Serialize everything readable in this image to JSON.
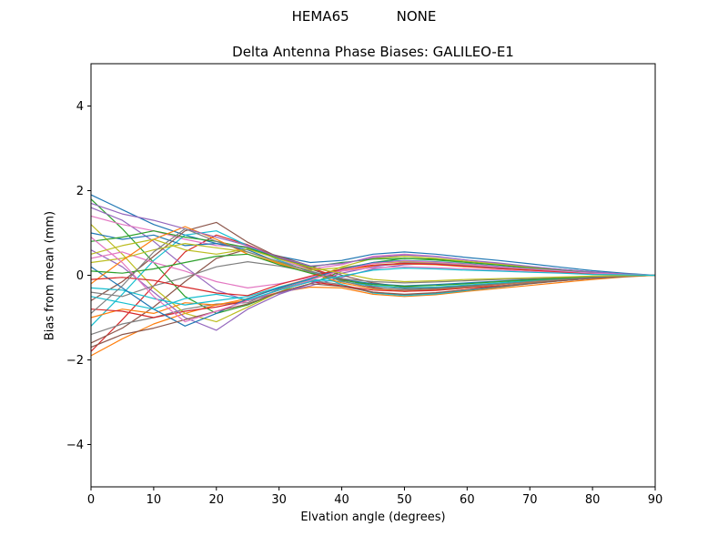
{
  "header": {
    "station": "HEMA65",
    "mode": "NONE"
  },
  "chart_data": {
    "type": "line",
    "suptitle": "HEMA65          NONE",
    "title": "Delta Antenna Phase Biases: GALILEO-E1",
    "xlabel": "Elvation angle (degrees)",
    "ylabel": "Bias from mean (mm)",
    "xlim": [
      0,
      90
    ],
    "ylim": [
      -5,
      5
    ],
    "xticks": [
      0,
      10,
      20,
      30,
      40,
      50,
      60,
      70,
      80,
      90
    ],
    "yticks": [
      -4,
      -2,
      0,
      2,
      4
    ],
    "grid": false,
    "legend": false,
    "x": [
      0,
      5,
      10,
      15,
      20,
      25,
      30,
      35,
      40,
      45,
      50,
      55,
      60,
      65,
      70,
      75,
      80,
      85,
      90
    ],
    "colors": [
      "#1f77b4",
      "#ff7f0e",
      "#2ca02c",
      "#d62728",
      "#9467bd",
      "#8c564b",
      "#e377c2",
      "#7f7f7f",
      "#bcbd22",
      "#17becf"
    ],
    "series": [
      [
        1.9,
        1.55,
        1.2,
        0.95,
        0.75,
        0.65,
        0.45,
        0.3,
        0.35,
        0.5,
        0.55,
        0.5,
        0.42,
        0.35,
        0.27,
        0.19,
        0.11,
        0.05,
        0.0
      ],
      [
        -1.9,
        -1.5,
        -1.15,
        -0.9,
        -0.7,
        -0.6,
        -0.4,
        -0.28,
        -0.3,
        -0.45,
        -0.5,
        -0.46,
        -0.38,
        -0.31,
        -0.24,
        -0.17,
        -0.1,
        -0.04,
        0.0
      ],
      [
        1.8,
        1.1,
        0.3,
        -0.5,
        -0.9,
        -0.7,
        -0.4,
        -0.2,
        0.1,
        0.3,
        0.4,
        0.38,
        0.32,
        0.26,
        0.2,
        0.14,
        0.08,
        0.03,
        0.0
      ],
      [
        -1.8,
        -1.05,
        -0.25,
        0.55,
        0.95,
        0.72,
        0.42,
        0.18,
        -0.08,
        -0.28,
        -0.38,
        -0.36,
        -0.3,
        -0.25,
        -0.19,
        -0.13,
        -0.07,
        -0.03,
        0.0
      ],
      [
        1.6,
        1.3,
        0.8,
        0.2,
        -0.35,
        -0.6,
        -0.42,
        -0.25,
        -0.05,
        0.15,
        0.25,
        0.28,
        0.25,
        0.2,
        0.15,
        0.1,
        0.06,
        0.02,
        0.0
      ],
      [
        -1.6,
        -1.25,
        -0.75,
        -0.15,
        0.4,
        0.62,
        0.45,
        0.22,
        0.0,
        -0.18,
        -0.28,
        -0.3,
        -0.26,
        -0.21,
        -0.16,
        -0.11,
        -0.06,
        -0.02,
        0.0
      ],
      [
        1.4,
        1.2,
        1.05,
        0.85,
        0.7,
        0.68,
        0.35,
        0.15,
        0.25,
        0.45,
        0.5,
        0.45,
        0.36,
        0.28,
        0.2,
        0.13,
        0.07,
        0.03,
        0.0
      ],
      [
        -1.4,
        -1.15,
        -1.0,
        -0.8,
        -0.68,
        -0.65,
        -0.32,
        -0.12,
        -0.22,
        -0.4,
        -0.46,
        -0.42,
        -0.34,
        -0.26,
        -0.18,
        -0.12,
        -0.06,
        -0.02,
        0.0
      ],
      [
        1.2,
        0.5,
        -0.3,
        -0.9,
        -1.1,
        -0.75,
        -0.4,
        -0.1,
        0.2,
        0.4,
        0.45,
        0.4,
        0.33,
        0.26,
        0.19,
        0.12,
        0.06,
        0.02,
        0.0
      ],
      [
        -1.2,
        -0.45,
        0.35,
        0.95,
        1.05,
        0.7,
        0.35,
        0.08,
        -0.22,
        -0.42,
        -0.48,
        -0.44,
        -0.36,
        -0.28,
        -0.2,
        -0.13,
        -0.07,
        -0.03,
        0.0
      ],
      [
        1.0,
        0.85,
        0.95,
        0.7,
        0.75,
        0.6,
        0.3,
        0.1,
        -0.1,
        -0.2,
        -0.25,
        -0.22,
        -0.18,
        -0.14,
        -0.1,
        -0.07,
        -0.04,
        -0.01,
        0.0
      ],
      [
        -1.0,
        -0.8,
        -0.9,
        -0.65,
        -0.7,
        -0.55,
        -0.28,
        -0.08,
        0.12,
        0.22,
        0.27,
        0.25,
        0.2,
        0.16,
        0.12,
        0.08,
        0.04,
        0.01,
        0.0
      ],
      [
        0.8,
        0.9,
        1.05,
        0.9,
        0.8,
        0.65,
        0.4,
        0.2,
        0.3,
        0.38,
        0.4,
        0.36,
        0.3,
        0.24,
        0.17,
        0.11,
        0.06,
        0.02,
        0.0
      ],
      [
        -0.8,
        -0.85,
        -1.0,
        -0.85,
        -0.75,
        -0.6,
        -0.35,
        -0.15,
        -0.25,
        -0.35,
        -0.38,
        -0.34,
        -0.28,
        -0.22,
        -0.16,
        -0.1,
        -0.05,
        -0.02,
        0.0
      ],
      [
        0.6,
        0.2,
        -0.4,
        -1.0,
        -1.3,
        -0.8,
        -0.45,
        -0.2,
        0.05,
        0.2,
        0.3,
        0.28,
        0.23,
        0.18,
        0.13,
        0.09,
        0.05,
        0.02,
        0.0
      ],
      [
        -0.6,
        -0.15,
        0.45,
        1.05,
        1.25,
        0.78,
        0.42,
        0.15,
        -0.1,
        -0.25,
        -0.32,
        -0.3,
        -0.25,
        -0.2,
        -0.14,
        -0.09,
        -0.05,
        -0.02,
        0.0
      ],
      [
        0.4,
        0.55,
        0.3,
        0.1,
        -0.15,
        -0.3,
        -0.2,
        -0.05,
        0.1,
        0.18,
        0.2,
        0.18,
        0.15,
        0.12,
        0.09,
        0.06,
        0.03,
        0.01,
        0.0
      ],
      [
        -0.4,
        -0.5,
        -0.25,
        -0.05,
        0.2,
        0.32,
        0.22,
        0.08,
        -0.08,
        -0.15,
        -0.18,
        -0.16,
        -0.13,
        -0.1,
        -0.08,
        -0.05,
        -0.03,
        -0.01,
        0.0
      ],
      [
        0.3,
        0.4,
        0.6,
        0.75,
        0.65,
        0.55,
        0.3,
        0.12,
        0.18,
        0.28,
        0.32,
        0.3,
        0.25,
        0.2,
        0.14,
        0.09,
        0.05,
        0.02,
        0.0
      ],
      [
        -0.3,
        -0.35,
        -0.55,
        -0.7,
        -0.6,
        -0.5,
        -0.28,
        -0.1,
        -0.15,
        -0.25,
        -0.3,
        -0.28,
        -0.23,
        -0.18,
        -0.13,
        -0.08,
        -0.04,
        -0.02,
        0.0
      ],
      [
        0.2,
        -0.3,
        -0.8,
        -1.2,
        -0.9,
        -0.55,
        -0.3,
        -0.08,
        0.15,
        0.3,
        0.35,
        0.32,
        0.27,
        0.21,
        0.15,
        0.1,
        0.05,
        0.02,
        0.0
      ],
      [
        -0.2,
        0.35,
        0.85,
        1.15,
        0.85,
        0.5,
        0.28,
        0.05,
        -0.18,
        -0.32,
        -0.36,
        -0.33,
        -0.28,
        -0.22,
        -0.16,
        -0.1,
        -0.05,
        -0.02,
        0.0
      ],
      [
        0.1,
        0.05,
        0.15,
        0.3,
        0.45,
        0.5,
        0.25,
        0.05,
        -0.12,
        -0.22,
        -0.26,
        -0.24,
        -0.2,
        -0.15,
        -0.11,
        -0.07,
        -0.04,
        -0.01,
        0.0
      ],
      [
        -0.1,
        -0.05,
        -0.12,
        -0.28,
        -0.42,
        -0.48,
        -0.22,
        -0.02,
        0.14,
        0.24,
        0.28,
        0.26,
        0.21,
        0.16,
        0.12,
        0.08,
        0.04,
        0.01,
        0.0
      ],
      [
        1.7,
        1.45,
        1.3,
        1.1,
        0.9,
        0.7,
        0.42,
        0.22,
        0.28,
        0.42,
        0.48,
        0.44,
        0.36,
        0.29,
        0.21,
        0.14,
        0.08,
        0.03,
        0.0
      ],
      [
        -1.7,
        -1.4,
        -1.25,
        -1.05,
        -0.85,
        -0.68,
        -0.4,
        -0.2,
        -0.26,
        -0.4,
        -0.45,
        -0.41,
        -0.34,
        -0.27,
        -0.2,
        -0.13,
        -0.07,
        -0.03,
        0.0
      ],
      [
        0.9,
        0.3,
        -0.5,
        -1.1,
        -0.85,
        -0.6,
        -0.35,
        -0.12,
        0.12,
        0.28,
        0.34,
        0.31,
        0.26,
        0.2,
        0.15,
        0.1,
        0.05,
        0.02,
        0.0
      ],
      [
        -0.9,
        -0.25,
        0.55,
        1.1,
        0.8,
        0.55,
        0.32,
        0.1,
        -0.14,
        -0.3,
        -0.35,
        -0.32,
        -0.27,
        -0.21,
        -0.15,
        -0.1,
        -0.05,
        -0.02,
        0.0
      ],
      [
        0.5,
        0.7,
        0.85,
        0.6,
        0.5,
        0.62,
        0.38,
        0.18,
        0.05,
        -0.1,
        -0.15,
        -0.13,
        -0.1,
        -0.08,
        -0.06,
        -0.04,
        -0.02,
        -0.01,
        0.0
      ],
      [
        -0.5,
        -0.65,
        -0.8,
        -0.55,
        -0.45,
        -0.58,
        -0.35,
        -0.15,
        -0.02,
        0.12,
        0.17,
        0.15,
        0.12,
        0.1,
        0.07,
        0.05,
        0.02,
        0.01,
        0.0
      ]
    ]
  }
}
